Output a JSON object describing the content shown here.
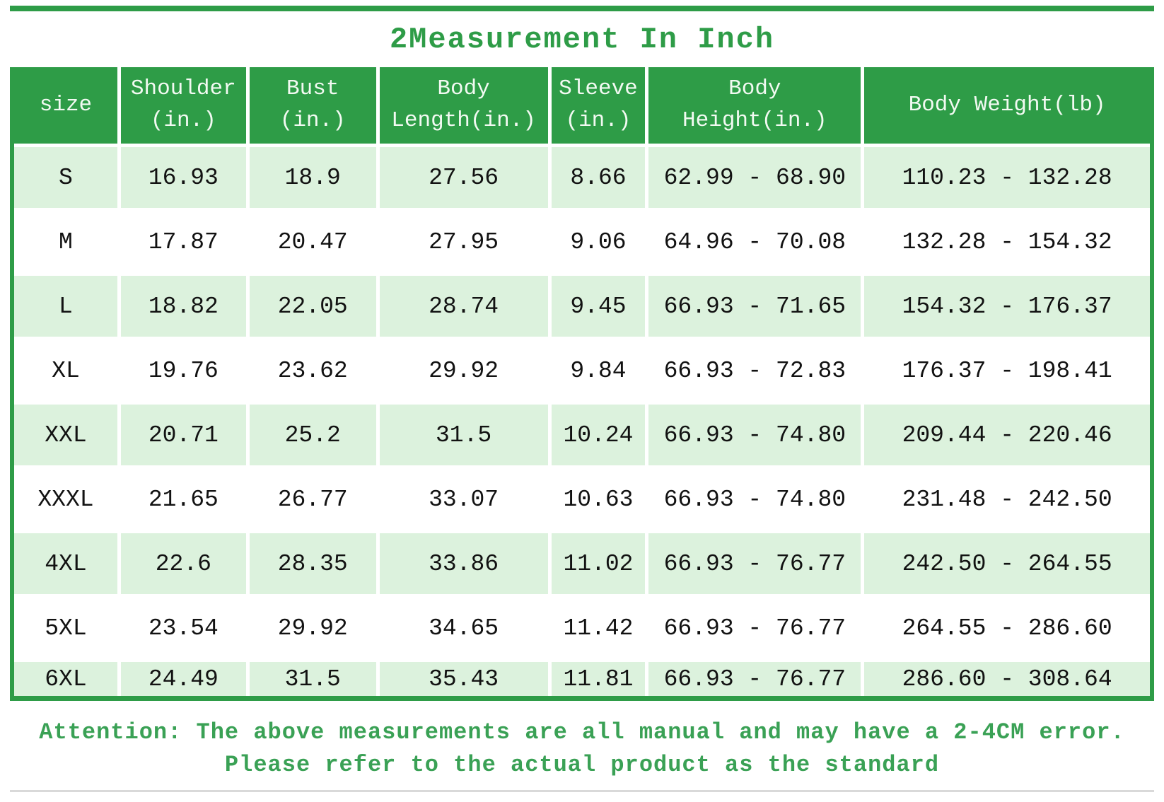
{
  "title": "2Measurement In Inch",
  "chart_data": {
    "type": "table",
    "title": "2Measurement In Inch",
    "columns": [
      "size",
      "Shoulder (in.)",
      "Bust (in.)",
      "Body Length(in.)",
      "Sleeve (in.)",
      "Body Height(in.)",
      "Body Weight(lb)"
    ],
    "header_lines": [
      [
        "size"
      ],
      [
        "Shoulder",
        "(in.)"
      ],
      [
        "Bust",
        "(in.)"
      ],
      [
        "Body",
        "Length(in.)"
      ],
      [
        "Sleeve",
        "(in.)"
      ],
      [
        "Body",
        "Height(in.)"
      ],
      [
        "Body Weight(lb)"
      ]
    ],
    "rows": [
      [
        "S",
        "16.93",
        "18.9",
        "27.56",
        "8.66",
        "62.99 - 68.90",
        "110.23 - 132.28"
      ],
      [
        "M",
        "17.87",
        "20.47",
        "27.95",
        "9.06",
        "64.96 - 70.08",
        "132.28 - 154.32"
      ],
      [
        "L",
        "18.82",
        "22.05",
        "28.74",
        "9.45",
        "66.93 - 71.65",
        "154.32 - 176.37"
      ],
      [
        "XL",
        "19.76",
        "23.62",
        "29.92",
        "9.84",
        "66.93 - 72.83",
        "176.37 - 198.41"
      ],
      [
        "XXL",
        "20.71",
        "25.2",
        "31.5",
        "10.24",
        "66.93 - 74.80",
        "209.44 - 220.46"
      ],
      [
        "XXXL",
        "21.65",
        "26.77",
        "33.07",
        "10.63",
        "66.93 - 74.80",
        "231.48 - 242.50"
      ],
      [
        "4XL",
        "22.6",
        "28.35",
        "33.86",
        "11.02",
        "66.93 - 76.77",
        "242.50 - 264.55"
      ],
      [
        "5XL",
        "23.54",
        "29.92",
        "34.65",
        "11.42",
        "66.93 - 76.77",
        "264.55 - 286.60"
      ],
      [
        "6XL",
        "24.49",
        "31.5",
        "35.43",
        "11.81",
        "66.93 - 76.77",
        "286.60 - 308.64"
      ]
    ]
  },
  "footer": {
    "line1": "Attention: The above measurements are all manual and may have a 2-4CM error.",
    "line2": "Please refer to the actual product as the standard"
  },
  "colors": {
    "accent_green": "#2e9c47",
    "row_light_green": "#dcf2dd",
    "header_text": "#f2faf2",
    "body_text": "#121212",
    "footer_text": "#3aa155",
    "divider_gray": "#d9d9d9"
  }
}
